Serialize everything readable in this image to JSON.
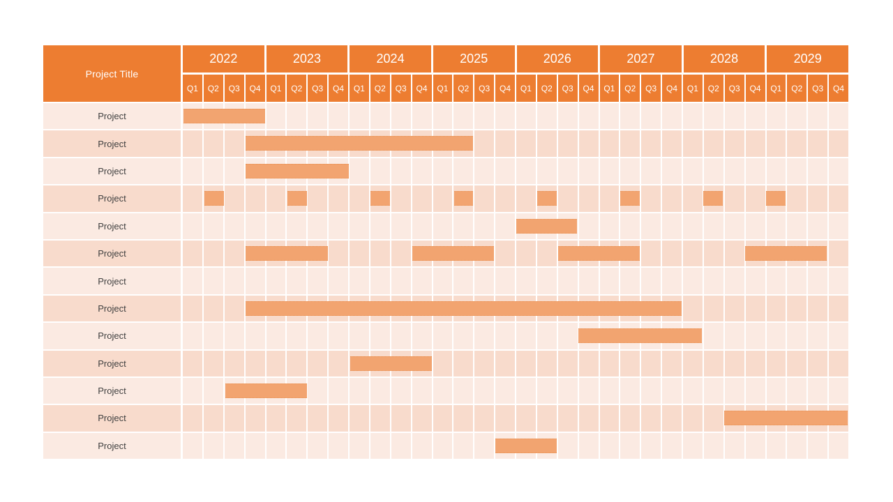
{
  "header": {
    "title_label": "Project Title"
  },
  "colors": {
    "header_orange": "#ED7D31",
    "bar_orange": "#F2A470",
    "row_light": "#FBEAE2",
    "row_dark": "#F8DBCC",
    "label_text": "#3F3F3F",
    "header_text": "#FFFFFF",
    "background": "#FFFFFF"
  },
  "chart_data": {
    "type": "gantt",
    "title": "Project Title",
    "x_years": [
      "2022",
      "2023",
      "2024",
      "2025",
      "2026",
      "2027",
      "2028",
      "2029"
    ],
    "x_quarters": [
      "Q1",
      "Q2",
      "Q3",
      "Q4"
    ],
    "x_range": [
      "2022-Q1",
      "2029-Q4"
    ],
    "grid": "on",
    "legend": "none",
    "rows": [
      {
        "label": "Project",
        "bars": [
          {
            "start": "2022-Q1",
            "end": "2022-Q4"
          }
        ]
      },
      {
        "label": "Project",
        "bars": [
          {
            "start": "2022-Q4",
            "end": "2025-Q2"
          }
        ]
      },
      {
        "label": "Project",
        "bars": [
          {
            "start": "2022-Q4",
            "end": "2023-Q4"
          }
        ]
      },
      {
        "label": "Project",
        "bars": [
          {
            "start": "2022-Q2",
            "end": "2022-Q2"
          },
          {
            "start": "2023-Q2",
            "end": "2023-Q2"
          },
          {
            "start": "2024-Q2",
            "end": "2024-Q2"
          },
          {
            "start": "2025-Q2",
            "end": "2025-Q2"
          },
          {
            "start": "2026-Q2",
            "end": "2026-Q2"
          },
          {
            "start": "2027-Q2",
            "end": "2027-Q2"
          },
          {
            "start": "2028-Q2",
            "end": "2028-Q2"
          },
          {
            "start": "2029-Q1",
            "end": "2029-Q1"
          }
        ]
      },
      {
        "label": "Project",
        "bars": [
          {
            "start": "2026-Q1",
            "end": "2026-Q3"
          }
        ]
      },
      {
        "label": "Project",
        "bars": [
          {
            "start": "2022-Q4",
            "end": "2023-Q3"
          },
          {
            "start": "2024-Q4",
            "end": "2025-Q3"
          },
          {
            "start": "2026-Q3",
            "end": "2027-Q2"
          },
          {
            "start": "2028-Q4",
            "end": "2029-Q3"
          }
        ]
      },
      {
        "label": "Project",
        "bars": []
      },
      {
        "label": "Project",
        "bars": [
          {
            "start": "2022-Q4",
            "end": "2027-Q4"
          }
        ]
      },
      {
        "label": "Project",
        "bars": [
          {
            "start": "2026-Q4",
            "end": "2028-Q1"
          }
        ]
      },
      {
        "label": "Project",
        "bars": [
          {
            "start": "2024-Q1",
            "end": "2024-Q4"
          }
        ]
      },
      {
        "label": "Project",
        "bars": [
          {
            "start": "2022-Q3",
            "end": "2023-Q2"
          }
        ]
      },
      {
        "label": "Project",
        "bars": [
          {
            "start": "2028-Q3",
            "end": "2029-Q4"
          }
        ]
      },
      {
        "label": "Project",
        "bars": [
          {
            "start": "2025-Q4",
            "end": "2026-Q2"
          }
        ]
      }
    ]
  }
}
